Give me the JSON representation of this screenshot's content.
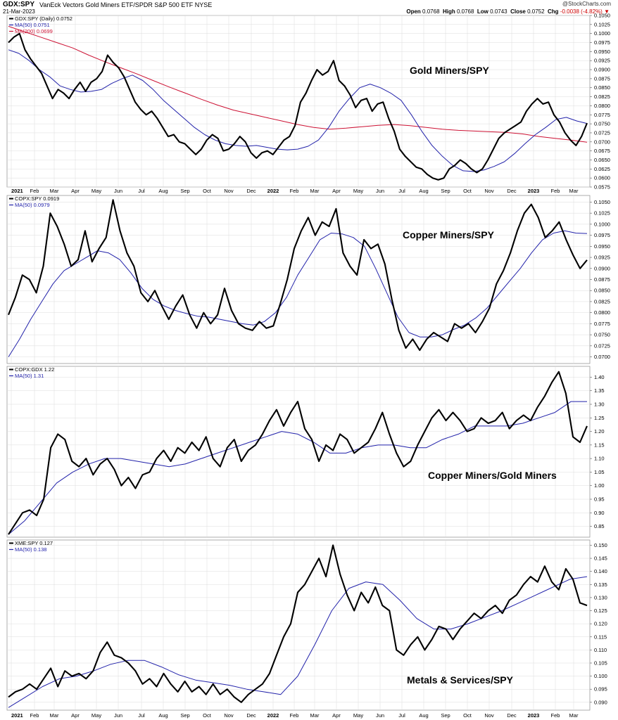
{
  "header": {
    "symbol": "GDX:SPY",
    "description": "VanEck Vectors Gold Miners ETF/SPDR S&P 500 ETF  NYSE",
    "date": "21-Mar-2023",
    "brand": "@StockCharts.com",
    "open_label": "Open",
    "open": "0.0768",
    "high_label": "High",
    "high": "0.0768",
    "low_label": "Low",
    "low": "0.0743",
    "close_label": "Close",
    "close": "0.0752",
    "chg_label": "Chg",
    "chg": "-0.0038 (-4.82%)"
  },
  "colors": {
    "price": "#000000",
    "ma50": "#2222aa",
    "ma200": "#cc1133",
    "grid": "#dcdcdc"
  },
  "x_axis": {
    "labels": [
      "2021",
      "Feb",
      "Mar",
      "Apr",
      "May",
      "Jun",
      "Jul",
      "Aug",
      "Sep",
      "Oct",
      "Nov",
      "Dec",
      "2022",
      "Feb",
      "Mar",
      "Apr",
      "May",
      "Jun",
      "Jul",
      "Aug",
      "Sep",
      "Oct",
      "Nov",
      "Dec",
      "2023",
      "Feb",
      "Mar"
    ],
    "bold": [
      "2021",
      "2022",
      "2023"
    ]
  },
  "chart_data": [
    {
      "type": "line",
      "title": "Gold Miners/SPY",
      "legend": [
        "GDX:SPY (Daily) 0.0752",
        "MA(50) 0.0751",
        "MA(200) 0.0699"
      ],
      "ylim": [
        0.0575,
        0.105
      ],
      "yticks": [
        "0.1050",
        "0.1025",
        "0.1000",
        "0.0975",
        "0.0950",
        "0.0925",
        "0.0900",
        "0.0875",
        "0.0850",
        "0.0825",
        "0.0800",
        "0.0775",
        "0.0750",
        "0.0725",
        "0.0700",
        "0.0675",
        "0.0650",
        "0.0625",
        "0.0600",
        "0.0575"
      ],
      "series": [
        {
          "name": "GDX:SPY",
          "values": [
            0.0975,
            0.099,
            0.1,
            0.0955,
            0.093,
            0.091,
            0.089,
            0.0855,
            0.082,
            0.0845,
            0.0835,
            0.082,
            0.0845,
            0.0865,
            0.084,
            0.0865,
            0.0875,
            0.0895,
            0.094,
            0.092,
            0.0905,
            0.088,
            0.0845,
            0.081,
            0.079,
            0.0775,
            0.0785,
            0.0765,
            0.074,
            0.0715,
            0.072,
            0.07,
            0.0695,
            0.068,
            0.0665,
            0.068,
            0.0705,
            0.072,
            0.071,
            0.0675,
            0.068,
            0.0695,
            0.0715,
            0.07,
            0.067,
            0.0655,
            0.067,
            0.0675,
            0.0665,
            0.0685,
            0.0705,
            0.0715,
            0.0745,
            0.081,
            0.0835,
            0.087,
            0.09,
            0.0885,
            0.0895,
            0.0925,
            0.087,
            0.0855,
            0.083,
            0.0795,
            0.0815,
            0.082,
            0.0785,
            0.0805,
            0.081,
            0.0765,
            0.073,
            0.068,
            0.066,
            0.0645,
            0.063,
            0.0625,
            0.061,
            0.06,
            0.0595,
            0.06,
            0.0625,
            0.0635,
            0.065,
            0.064,
            0.0625,
            0.0615,
            0.0625,
            0.065,
            0.068,
            0.071,
            0.0725,
            0.0735,
            0.0745,
            0.0755,
            0.0785,
            0.0805,
            0.082,
            0.0805,
            0.081,
            0.0775,
            0.0755,
            0.0725,
            0.0705,
            0.069,
            0.0715,
            0.0752
          ]
        },
        {
          "name": "MA(50)",
          "values": [
            0.0955,
            0.0945,
            0.0925,
            0.09,
            0.088,
            0.0855,
            0.0845,
            0.0838,
            0.084,
            0.0845,
            0.0862,
            0.0875,
            0.0885,
            0.087,
            0.0845,
            0.0815,
            0.079,
            0.0765,
            0.074,
            0.072,
            0.0705,
            0.0695,
            0.069,
            0.0688,
            0.069,
            0.0685,
            0.068,
            0.0678,
            0.068,
            0.0688,
            0.0705,
            0.074,
            0.0785,
            0.082,
            0.085,
            0.086,
            0.085,
            0.0835,
            0.0815,
            0.0775,
            0.073,
            0.069,
            0.066,
            0.0635,
            0.062,
            0.0618,
            0.0622,
            0.0632,
            0.0645,
            0.0668,
            0.0695,
            0.072,
            0.074,
            0.0762,
            0.0768,
            0.0758,
            0.0751
          ]
        },
        {
          "name": "MA(200)",
          "values": [
            0.102,
            0.1005,
            0.099,
            0.0975,
            0.096,
            0.094,
            0.0922,
            0.0905,
            0.0888,
            0.087,
            0.0852,
            0.0835,
            0.0818,
            0.0802,
            0.0788,
            0.0778,
            0.0768,
            0.0758,
            0.0748,
            0.074,
            0.0735,
            0.0738,
            0.0742,
            0.0746,
            0.0748,
            0.0745,
            0.074,
            0.0735,
            0.0732,
            0.073,
            0.0728,
            0.0726,
            0.0722,
            0.0715,
            0.071,
            0.0705,
            0.0699
          ]
        }
      ]
    },
    {
      "type": "line",
      "title": "Copper Miners/SPY",
      "legend": [
        "COPX:SPY 0.0919",
        "MA(50) 0.0979"
      ],
      "ylim": [
        0.0685,
        0.1065
      ],
      "yticks": [
        "0.1050",
        "0.1025",
        "0.1000",
        "0.0975",
        "0.0950",
        "0.0925",
        "0.0900",
        "0.0875",
        "0.0850",
        "0.0825",
        "0.0800",
        "0.0775",
        "0.0750",
        "0.0725",
        "0.0700"
      ],
      "series": [
        {
          "name": "COPX:SPY",
          "values": [
            0.0795,
            0.0835,
            0.0885,
            0.0875,
            0.0845,
            0.0905,
            0.1025,
            0.0995,
            0.0955,
            0.0905,
            0.092,
            0.0985,
            0.0915,
            0.0945,
            0.097,
            0.1055,
            0.0985,
            0.0935,
            0.0905,
            0.0845,
            0.0825,
            0.085,
            0.0815,
            0.0785,
            0.0815,
            0.084,
            0.0795,
            0.0765,
            0.08,
            0.0775,
            0.0795,
            0.0855,
            0.0805,
            0.0775,
            0.0765,
            0.076,
            0.078,
            0.0765,
            0.077,
            0.082,
            0.0875,
            0.0945,
            0.0985,
            0.1015,
            0.0975,
            0.1005,
            0.0995,
            0.1035,
            0.0935,
            0.0905,
            0.0885,
            0.0965,
            0.0945,
            0.0955,
            0.091,
            0.083,
            0.076,
            0.072,
            0.074,
            0.0715,
            0.074,
            0.0755,
            0.0745,
            0.0735,
            0.0775,
            0.0765,
            0.0775,
            0.0755,
            0.078,
            0.081,
            0.0865,
            0.0895,
            0.0935,
            0.0985,
            0.1025,
            0.1045,
            0.1015,
            0.097,
            0.0985,
            0.1005,
            0.0965,
            0.093,
            0.09,
            0.0919
          ]
        },
        {
          "name": "MA(50)",
          "values": [
            0.07,
            0.074,
            0.0785,
            0.0825,
            0.0865,
            0.0895,
            0.091,
            0.0925,
            0.094,
            0.0935,
            0.092,
            0.089,
            0.0855,
            0.083,
            0.0815,
            0.0805,
            0.0798,
            0.0792,
            0.079,
            0.0785,
            0.078,
            0.0775,
            0.0772,
            0.078,
            0.08,
            0.0835,
            0.0885,
            0.0925,
            0.0965,
            0.098,
            0.0978,
            0.097,
            0.095,
            0.09,
            0.0845,
            0.079,
            0.0755,
            0.0745,
            0.0745,
            0.075,
            0.0762,
            0.0772,
            0.0788,
            0.081,
            0.084,
            0.087,
            0.09,
            0.0935,
            0.0965,
            0.098,
            0.0985,
            0.098,
            0.0979
          ]
        }
      ]
    },
    {
      "type": "line",
      "title": "Copper Miners/Gold Miners",
      "legend": [
        "COPX:GDX 1.22",
        "MA(50) 1.31"
      ],
      "ylim": [
        0.81,
        1.44
      ],
      "yticks": [
        "1.40",
        "1.35",
        "1.30",
        "1.25",
        "1.20",
        "1.15",
        "1.10",
        "1.05",
        "1.00",
        "0.95",
        "0.90",
        "0.85"
      ],
      "series": [
        {
          "name": "COPX:GDX",
          "values": [
            0.82,
            0.86,
            0.9,
            0.91,
            0.89,
            0.95,
            1.14,
            1.19,
            1.17,
            1.09,
            1.07,
            1.1,
            1.04,
            1.08,
            1.1,
            1.06,
            1.0,
            1.03,
            0.99,
            1.04,
            1.05,
            1.1,
            1.13,
            1.09,
            1.14,
            1.12,
            1.16,
            1.13,
            1.18,
            1.1,
            1.07,
            1.14,
            1.17,
            1.09,
            1.13,
            1.15,
            1.19,
            1.24,
            1.28,
            1.22,
            1.27,
            1.31,
            1.21,
            1.17,
            1.09,
            1.15,
            1.13,
            1.19,
            1.17,
            1.12,
            1.14,
            1.16,
            1.21,
            1.27,
            1.19,
            1.12,
            1.07,
            1.09,
            1.15,
            1.2,
            1.25,
            1.28,
            1.24,
            1.27,
            1.24,
            1.2,
            1.21,
            1.25,
            1.23,
            1.24,
            1.27,
            1.21,
            1.24,
            1.26,
            1.24,
            1.29,
            1.33,
            1.38,
            1.42,
            1.34,
            1.18,
            1.16,
            1.22
          ]
        },
        {
          "name": "MA(50)",
          "values": [
            0.82,
            0.87,
            0.94,
            1.01,
            1.05,
            1.08,
            1.1,
            1.1,
            1.09,
            1.08,
            1.07,
            1.08,
            1.1,
            1.12,
            1.14,
            1.16,
            1.18,
            1.2,
            1.19,
            1.16,
            1.12,
            1.12,
            1.14,
            1.15,
            1.15,
            1.14,
            1.14,
            1.17,
            1.19,
            1.22,
            1.22,
            1.22,
            1.23,
            1.25,
            1.27,
            1.31,
            1.31
          ]
        }
      ]
    },
    {
      "type": "line",
      "title": "Metals & Services/SPY",
      "legend": [
        "XME:SPY 0.127",
        "MA(50) 0.138"
      ],
      "ylim": [
        0.087,
        0.152
      ],
      "yticks": [
        "0.150",
        "0.145",
        "0.140",
        "0.135",
        "0.130",
        "0.125",
        "0.120",
        "0.115",
        "0.110",
        "0.105",
        "0.100",
        "0.095",
        "0.090"
      ],
      "series": [
        {
          "name": "XME:SPY",
          "values": [
            0.092,
            0.094,
            0.095,
            0.097,
            0.095,
            0.099,
            0.103,
            0.096,
            0.102,
            0.1,
            0.101,
            0.099,
            0.102,
            0.109,
            0.113,
            0.108,
            0.107,
            0.105,
            0.102,
            0.097,
            0.099,
            0.096,
            0.101,
            0.097,
            0.094,
            0.098,
            0.094,
            0.096,
            0.093,
            0.097,
            0.093,
            0.095,
            0.092,
            0.09,
            0.093,
            0.095,
            0.097,
            0.101,
            0.108,
            0.115,
            0.12,
            0.132,
            0.135,
            0.14,
            0.145,
            0.138,
            0.15,
            0.139,
            0.131,
            0.125,
            0.132,
            0.128,
            0.134,
            0.127,
            0.125,
            0.11,
            0.108,
            0.112,
            0.115,
            0.11,
            0.114,
            0.119,
            0.118,
            0.114,
            0.118,
            0.121,
            0.124,
            0.122,
            0.125,
            0.127,
            0.124,
            0.129,
            0.131,
            0.135,
            0.138,
            0.136,
            0.142,
            0.136,
            0.133,
            0.141,
            0.137,
            0.128,
            0.127
          ]
        },
        {
          "name": "MA(50)",
          "values": [
            0.088,
            0.092,
            0.096,
            0.099,
            0.1,
            0.102,
            0.1045,
            0.106,
            0.106,
            0.1035,
            0.1005,
            0.0985,
            0.0975,
            0.0965,
            0.095,
            0.094,
            0.093,
            0.1,
            0.112,
            0.125,
            0.1335,
            0.136,
            0.135,
            0.129,
            0.122,
            0.118,
            0.118,
            0.12,
            0.1225,
            0.125,
            0.128,
            0.131,
            0.134,
            0.137,
            0.138
          ]
        }
      ]
    }
  ]
}
